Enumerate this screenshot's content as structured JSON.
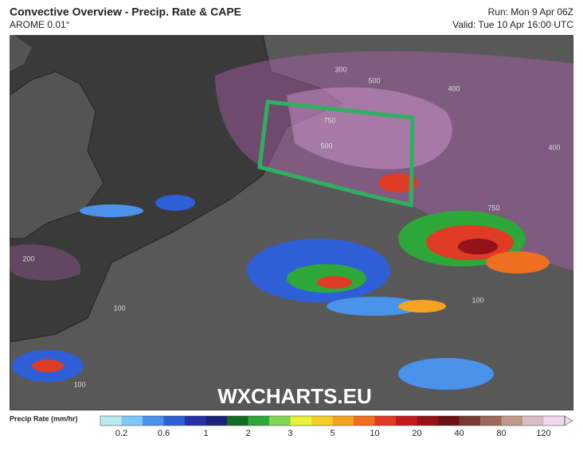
{
  "header": {
    "title": "Convective Overview - Precip. Rate & CAPE",
    "model": "AROME 0.01°",
    "run": "Run: Mon 9 Apr 06Z",
    "valid": "Valid: Tue 10 Apr 16:00 UTC"
  },
  "map": {
    "watermark": "WXCHARTS.EU",
    "contour_labels": [
      "300",
      "500",
      "400",
      "750",
      "500",
      "400",
      "750",
      "100",
      "200",
      "100",
      "100"
    ]
  },
  "colorbar": {
    "label": "Precip Rate (mm/hr)",
    "colors": [
      "#b9ecf0",
      "#7fc8f5",
      "#4a93ea",
      "#2f5fd6",
      "#2532a8",
      "#1a237a",
      "#136b21",
      "#2ea83a",
      "#7fd657",
      "#e8f23b",
      "#f5cf2a",
      "#f5a323",
      "#ee6f1f",
      "#e03b24",
      "#c41a1e",
      "#951218",
      "#6e1216",
      "#7a3a30",
      "#9c6a58",
      "#bf9a8c",
      "#d9bfc3",
      "#efd9ee"
    ],
    "ticks": [
      0.2,
      0.6,
      1,
      2,
      3,
      5,
      10,
      20,
      40,
      80,
      120
    ]
  }
}
